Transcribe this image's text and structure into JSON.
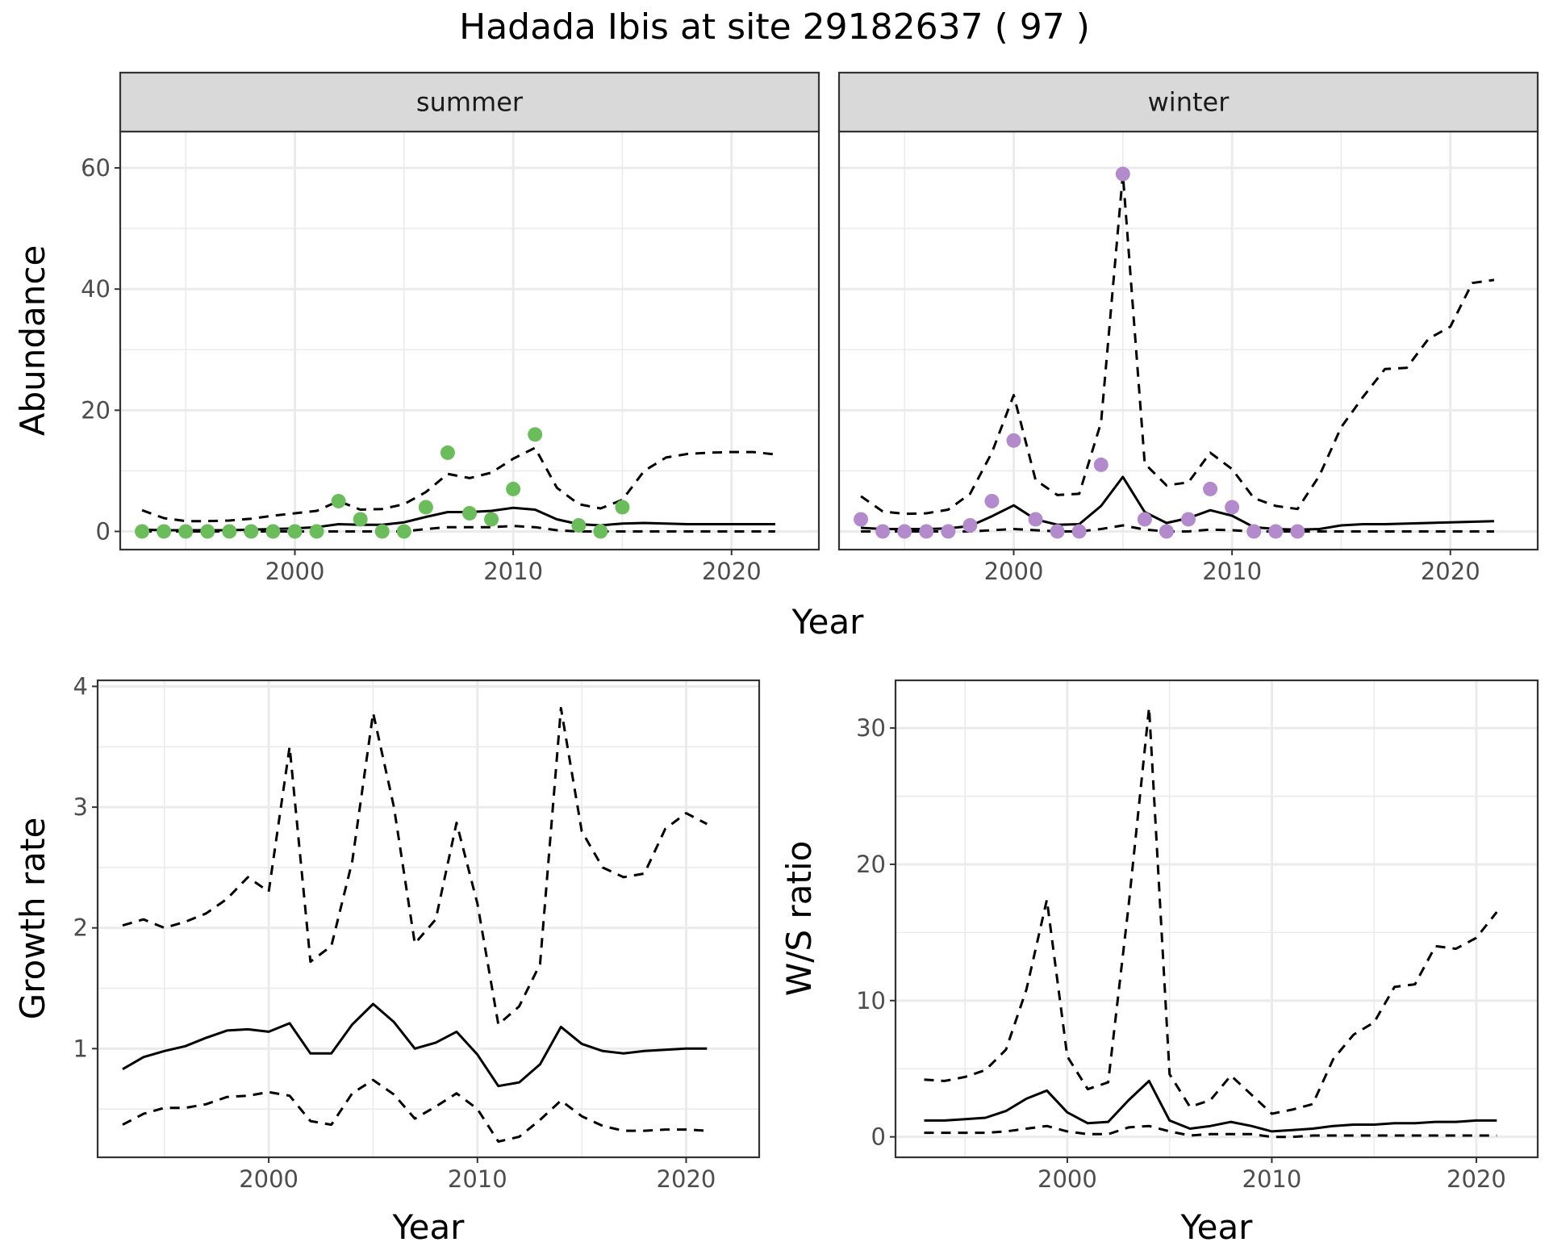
{
  "title": "Hadada Ibis at site 29182637 ( 97 )",
  "colors": {
    "summer_points": "#6ABD5A",
    "winter_points": "#B38ACB",
    "line": "#000000",
    "grid": "#ebebeb",
    "strip_bg": "#d9d9d9"
  },
  "chart_data": [
    {
      "type": "line",
      "panel": "abundance",
      "ylabel": "Abundance",
      "xlabel": "Year",
      "xlim": [
        1992,
        2024
      ],
      "ylim": [
        -3,
        66
      ],
      "xticks": [
        2000,
        2010,
        2020
      ],
      "yticks": [
        0,
        20,
        40,
        60
      ],
      "facets": [
        {
          "label": "summer",
          "points": {
            "x": [
              1993,
              1994,
              1995,
              1996,
              1997,
              1998,
              1999,
              2000,
              2001,
              2002,
              2003,
              2004,
              2005,
              2006,
              2007,
              2008,
              2009,
              2010,
              2011,
              2013,
              2014,
              2015
            ],
            "y": [
              0,
              0,
              0,
              0,
              0,
              0,
              0,
              0,
              0,
              5,
              2,
              0,
              0,
              4,
              13,
              3,
              2,
              7,
              16,
              1,
              0,
              4
            ]
          },
          "mean": {
            "x": [
              1993,
              1994,
              1995,
              1996,
              1997,
              1998,
              1999,
              2000,
              2001,
              2002,
              2003,
              2004,
              2005,
              2006,
              2007,
              2008,
              2009,
              2010,
              2011,
              2012,
              2013,
              2014,
              2015,
              2016,
              2017,
              2018,
              2019,
              2020,
              2021,
              2022
            ],
            "y": [
              0.3,
              0.2,
              0.2,
              0.2,
              0.2,
              0.3,
              0.4,
              0.5,
              0.7,
              1.2,
              1.1,
              1.1,
              1.5,
              2.4,
              3.2,
              3.2,
              3.4,
              3.9,
              3.6,
              2.0,
              1.2,
              1.0,
              1.3,
              1.4,
              1.3,
              1.2,
              1.2,
              1.2,
              1.2,
              1.2
            ]
          },
          "upper": {
            "x": [
              1993,
              1994,
              1995,
              1996,
              1997,
              1998,
              1999,
              2000,
              2001,
              2002,
              2003,
              2004,
              2005,
              2006,
              2007,
              2008,
              2009,
              2010,
              2011,
              2012,
              2013,
              2014,
              2015,
              2016,
              2017,
              2018,
              2019,
              2020,
              2021,
              2022
            ],
            "y": [
              3.5,
              2.2,
              1.7,
              1.7,
              1.8,
              2.1,
              2.6,
              3.0,
              3.4,
              5.0,
              3.6,
              3.7,
              4.5,
              6.5,
              9.5,
              8.8,
              9.7,
              12.0,
              13.8,
              7.2,
              4.5,
              3.8,
              5.2,
              10.0,
              12.2,
              12.8,
              13.0,
              13.1,
              13.1,
              12.7
            ]
          },
          "lower": {
            "x": [
              1993,
              1994,
              1995,
              1996,
              1997,
              1998,
              1999,
              2000,
              2001,
              2002,
              2003,
              2004,
              2005,
              2006,
              2007,
              2008,
              2009,
              2010,
              2011,
              2012,
              2013,
              2014,
              2015,
              2016,
              2017,
              2018,
              2019,
              2020,
              2021,
              2022
            ],
            "y": [
              0,
              0,
              0,
              0,
              0,
              0,
              0,
              0,
              0,
              0,
              0,
              0,
              0,
              0.4,
              0.7,
              0.7,
              0.7,
              0.9,
              0.7,
              0.2,
              0,
              0,
              0,
              0,
              0,
              0,
              0,
              0,
              0,
              0
            ]
          }
        },
        {
          "label": "winter",
          "points": {
            "x": [
              1993,
              1994,
              1995,
              1996,
              1997,
              1998,
              1999,
              2000,
              2001,
              2002,
              2003,
              2004,
              2005,
              2006,
              2007,
              2008,
              2009,
              2010,
              2011,
              2012,
              2013
            ],
            "y": [
              2,
              0,
              0,
              0,
              0,
              1,
              5,
              15,
              2,
              0,
              0,
              11,
              59,
              2,
              0,
              2,
              7,
              4,
              0,
              0,
              0
            ]
          },
          "mean": {
            "x": [
              1993,
              1994,
              1995,
              1996,
              1997,
              1998,
              1999,
              2000,
              2001,
              2002,
              2003,
              2004,
              2005,
              2006,
              2007,
              2008,
              2009,
              2010,
              2011,
              2012,
              2013,
              2014,
              2015,
              2016,
              2017,
              2018,
              2019,
              2020,
              2021,
              2022
            ],
            "y": [
              0.6,
              0.4,
              0.4,
              0.4,
              0.5,
              0.9,
              2.5,
              4.3,
              2.0,
              1.1,
              1.2,
              4.2,
              9.0,
              3.2,
              1.4,
              2.2,
              3.5,
              2.6,
              0.7,
              0.4,
              0.3,
              0.4,
              1.0,
              1.2,
              1.2,
              1.3,
              1.4,
              1.5,
              1.6,
              1.7
            ]
          },
          "upper": {
            "x": [
              1993,
              1994,
              1995,
              1996,
              1997,
              1998,
              1999,
              2000,
              2001,
              2002,
              2003,
              2004,
              2005,
              2006,
              2007,
              2008,
              2009,
              2010,
              2011,
              2012,
              2013,
              2014,
              2015,
              2016,
              2017,
              2018,
              2019,
              2020,
              2021,
              2022
            ],
            "y": [
              5.8,
              3.3,
              2.9,
              3.0,
              3.6,
              6.2,
              13.0,
              22.5,
              8.5,
              6.0,
              6.2,
              18.0,
              59.0,
              11.2,
              7.6,
              8.1,
              13.0,
              10.3,
              5.5,
              4.2,
              3.7,
              9.2,
              17.2,
              22.2,
              26.8,
              27.0,
              31.8,
              33.8,
              41.0,
              41.5
            ]
          },
          "lower": {
            "x": [
              1993,
              1994,
              1995,
              1996,
              1997,
              1998,
              1999,
              2000,
              2001,
              2002,
              2003,
              2004,
              2005,
              2006,
              2007,
              2008,
              2009,
              2010,
              2011,
              2012,
              2013,
              2014,
              2015,
              2016,
              2017,
              2018,
              2019,
              2020,
              2021,
              2022
            ],
            "y": [
              0,
              0,
              0,
              0,
              0,
              0,
              0.2,
              0.4,
              0.2,
              0,
              0,
              0.4,
              1.0,
              0.3,
              0,
              0,
              0.3,
              0.2,
              0,
              0,
              0,
              0,
              0,
              0,
              0,
              0,
              0,
              0,
              0,
              0
            ]
          }
        }
      ]
    },
    {
      "type": "line",
      "panel": "growth",
      "ylabel": "Growth rate",
      "xlabel": "Year",
      "xlim": [
        1991.8,
        2023.5
      ],
      "ylim": [
        0.1,
        4.05
      ],
      "xticks": [
        2000,
        2010,
        2020
      ],
      "yticks": [
        1,
        2,
        3,
        4
      ],
      "series": [
        {
          "role": "mean",
          "style": "solid",
          "x": [
            1993,
            1994,
            1995,
            1996,
            1997,
            1998,
            1999,
            2000,
            2001,
            2002,
            2003,
            2004,
            2005,
            2006,
            2007,
            2008,
            2009,
            2010,
            2011,
            2012,
            2013,
            2014,
            2015,
            2016,
            2017,
            2018,
            2019,
            2020,
            2021
          ],
          "y": [
            0.83,
            0.93,
            0.98,
            1.02,
            1.09,
            1.15,
            1.16,
            1.14,
            1.21,
            0.96,
            0.96,
            1.2,
            1.37,
            1.22,
            1.0,
            1.05,
            1.14,
            0.95,
            0.69,
            0.72,
            0.87,
            1.18,
            1.04,
            0.98,
            0.96,
            0.98,
            0.99,
            1.0,
            1.0
          ]
        },
        {
          "role": "upper",
          "style": "dashed",
          "x": [
            1993,
            1994,
            1995,
            1996,
            1997,
            1998,
            1999,
            2000,
            2001,
            2002,
            2003,
            2004,
            2005,
            2006,
            2007,
            2008,
            2009,
            2010,
            2011,
            2012,
            2013,
            2014,
            2015,
            2016,
            2017,
            2018,
            2019,
            2020,
            2021
          ],
          "y": [
            2.02,
            2.07,
            2.0,
            2.05,
            2.12,
            2.24,
            2.42,
            2.3,
            3.5,
            1.72,
            1.85,
            2.55,
            3.78,
            3.0,
            1.87,
            2.07,
            2.87,
            2.2,
            1.2,
            1.35,
            1.7,
            3.82,
            2.8,
            2.5,
            2.42,
            2.45,
            2.82,
            2.95,
            2.86
          ]
        },
        {
          "role": "lower",
          "style": "dashed",
          "x": [
            1993,
            1994,
            1995,
            1996,
            1997,
            1998,
            1999,
            2000,
            2001,
            2002,
            2003,
            2004,
            2005,
            2006,
            2007,
            2008,
            2009,
            2010,
            2011,
            2012,
            2013,
            2014,
            2015,
            2016,
            2017,
            2018,
            2019,
            2020,
            2021
          ],
          "y": [
            0.37,
            0.46,
            0.51,
            0.51,
            0.54,
            0.6,
            0.61,
            0.64,
            0.61,
            0.4,
            0.37,
            0.63,
            0.74,
            0.62,
            0.42,
            0.52,
            0.63,
            0.5,
            0.23,
            0.27,
            0.41,
            0.57,
            0.44,
            0.36,
            0.32,
            0.32,
            0.33,
            0.33,
            0.32
          ]
        }
      ]
    },
    {
      "type": "line",
      "panel": "ratio",
      "ylabel": "W/S ratio",
      "xlabel": "Year",
      "xlim": [
        1991.6,
        2023.0
      ],
      "ylim": [
        -1.5,
        33.5
      ],
      "xticks": [
        2000,
        2010,
        2020
      ],
      "yticks": [
        0,
        10,
        20,
        30
      ],
      "series": [
        {
          "role": "mean",
          "style": "solid",
          "x": [
            1993,
            1994,
            1995,
            1996,
            1997,
            1998,
            1999,
            2000,
            2001,
            2002,
            2003,
            2004,
            2005,
            2006,
            2007,
            2008,
            2009,
            2010,
            2011,
            2012,
            2013,
            2014,
            2015,
            2016,
            2017,
            2018,
            2019,
            2020,
            2021
          ],
          "y": [
            1.2,
            1.2,
            1.3,
            1.4,
            1.9,
            2.8,
            3.4,
            1.8,
            1.0,
            1.1,
            2.7,
            4.1,
            1.2,
            0.6,
            0.8,
            1.1,
            0.8,
            0.4,
            0.5,
            0.6,
            0.8,
            0.9,
            0.9,
            1.0,
            1.0,
            1.1,
            1.1,
            1.2,
            1.2
          ]
        },
        {
          "role": "upper",
          "style": "dashed",
          "x": [
            1993,
            1994,
            1995,
            1996,
            1997,
            1998,
            1999,
            2000,
            2001,
            2002,
            2003,
            2004,
            2005,
            2006,
            2007,
            2008,
            2009,
            2010,
            2011,
            2012,
            2013,
            2014,
            2015,
            2016,
            2017,
            2018,
            2019,
            2020,
            2021
          ],
          "y": [
            4.2,
            4.1,
            4.4,
            4.9,
            6.4,
            10.8,
            17.4,
            5.9,
            3.5,
            4.0,
            17.0,
            31.5,
            4.6,
            2.2,
            2.7,
            4.5,
            3.1,
            1.7,
            2.0,
            2.4,
            5.7,
            7.5,
            8.4,
            11.0,
            11.2,
            14.0,
            13.8,
            14.6,
            16.5
          ]
        },
        {
          "role": "lower",
          "style": "dashed",
          "x": [
            1993,
            1994,
            1995,
            1996,
            1997,
            1998,
            1999,
            2000,
            2001,
            2002,
            2003,
            2004,
            2005,
            2006,
            2007,
            2008,
            2009,
            2010,
            2011,
            2012,
            2013,
            2014,
            2015,
            2016,
            2017,
            2018,
            2019,
            2020,
            2021
          ],
          "y": [
            0.3,
            0.3,
            0.3,
            0.3,
            0.4,
            0.6,
            0.8,
            0.4,
            0.2,
            0.2,
            0.7,
            0.8,
            0.4,
            0.1,
            0.2,
            0.2,
            0.2,
            0.0,
            0.0,
            0.1,
            0.1,
            0.1,
            0.1,
            0.1,
            0.1,
            0.1,
            0.1,
            0.1,
            0.1
          ]
        }
      ]
    }
  ]
}
